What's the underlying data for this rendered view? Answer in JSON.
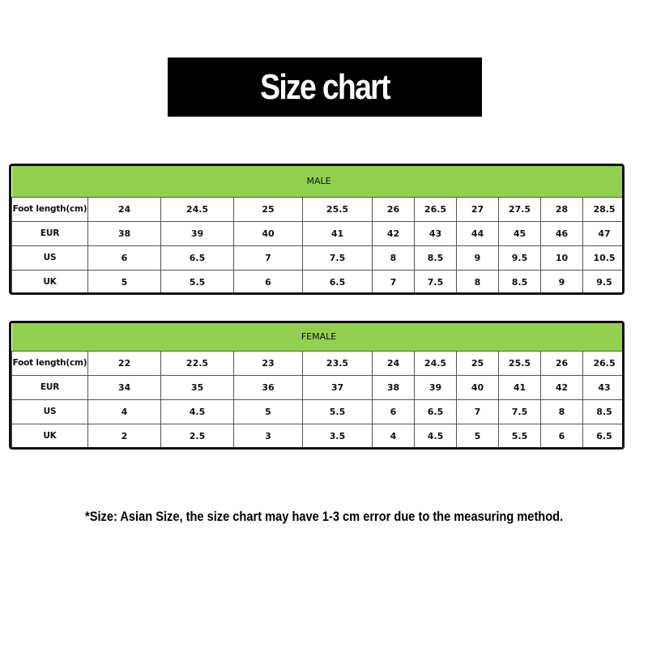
{
  "title": "Size chart",
  "colors": {
    "header_green": "#92d050",
    "title_bg": "#000000"
  },
  "tables": [
    {
      "header": "MALE",
      "rows": [
        {
          "label": "Foot length(cm)",
          "values": [
            "24",
            "24.5",
            "25",
            "25.5",
            "26",
            "26.5",
            "27",
            "27.5",
            "28",
            "28.5"
          ]
        },
        {
          "label": "EUR",
          "values": [
            "38",
            "39",
            "40",
            "41",
            "42",
            "43",
            "44",
            "45",
            "46",
            "47"
          ]
        },
        {
          "label": "US",
          "values": [
            "6",
            "6.5",
            "7",
            "7.5",
            "8",
            "8.5",
            "9",
            "9.5",
            "10",
            "10.5"
          ]
        },
        {
          "label": "UK",
          "values": [
            "5",
            "5.5",
            "6",
            "6.5",
            "7",
            "7.5",
            "8",
            "8.5",
            "9",
            "9.5"
          ]
        }
      ]
    },
    {
      "header": "FEMALE",
      "rows": [
        {
          "label": "Foot length(cm)",
          "values": [
            "22",
            "22.5",
            "23",
            "23.5",
            "24",
            "24.5",
            "25",
            "25.5",
            "26",
            "26.5"
          ]
        },
        {
          "label": "EUR",
          "values": [
            "34",
            "35",
            "36",
            "37",
            "38",
            "39",
            "40",
            "41",
            "42",
            "43"
          ]
        },
        {
          "label": "US",
          "values": [
            "4",
            "4.5",
            "5",
            "5.5",
            "6",
            "6.5",
            "7",
            "7.5",
            "8",
            "8.5"
          ]
        },
        {
          "label": "UK",
          "values": [
            "2",
            "2.5",
            "3",
            "3.5",
            "4",
            "4.5",
            "5",
            "5.5",
            "6",
            "6.5"
          ]
        }
      ]
    }
  ],
  "note": "*Size: Asian Size, the size chart may have 1-3 cm error due to the measuring method."
}
